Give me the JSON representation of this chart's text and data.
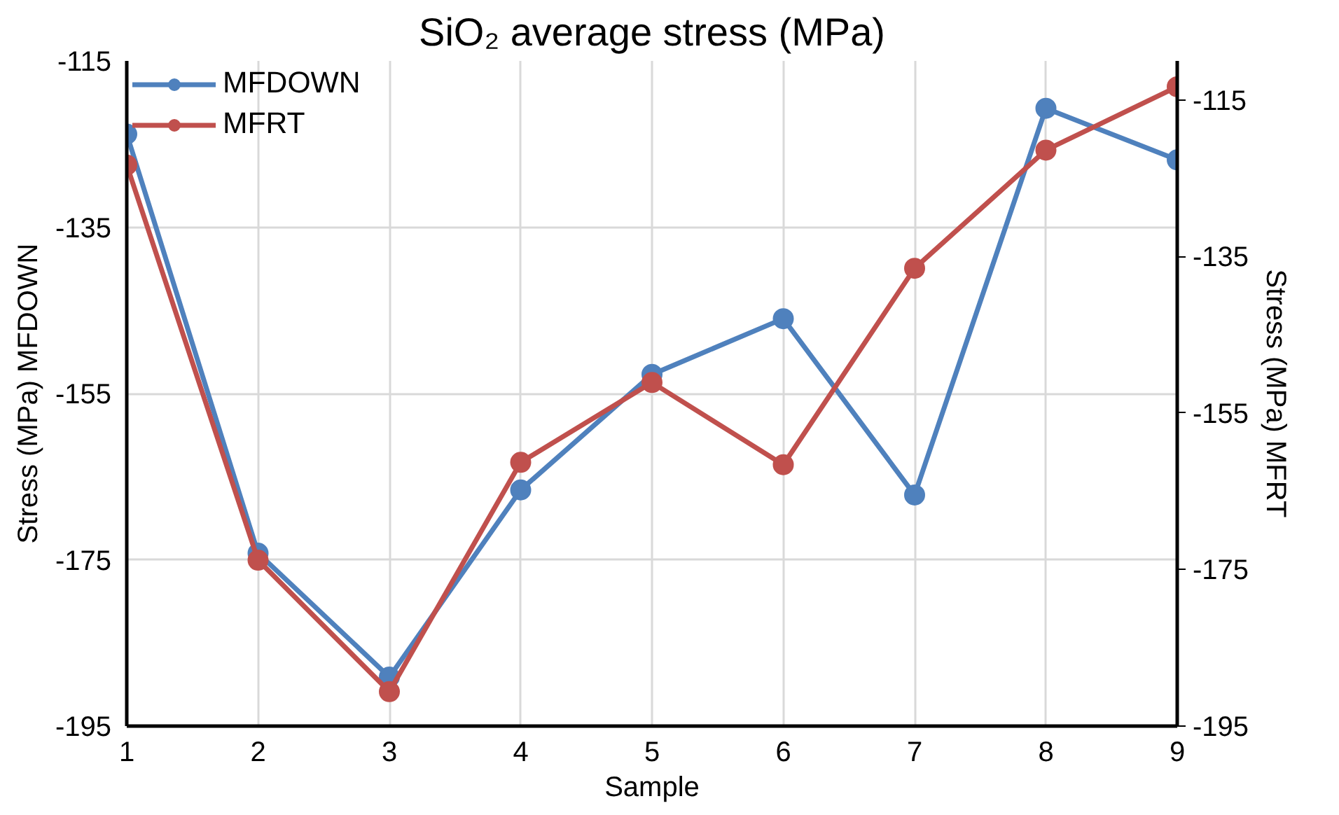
{
  "chart_data": {
    "type": "line",
    "title": "SiO₂ average stress (MPa)",
    "xlabel": "Sample",
    "ylabel": "Stress (MPa) MFDOWN",
    "y2label": "Stress (MPa) MFRT",
    "x": [
      1,
      2,
      3,
      4,
      5,
      6,
      7,
      8,
      9
    ],
    "xlim": [
      1,
      9
    ],
    "xticks": [
      1,
      2,
      3,
      4,
      5,
      6,
      7,
      8,
      9
    ],
    "ylim": [
      -195,
      -115
    ],
    "yticks": [
      -195,
      -175,
      -155,
      -135,
      -115
    ],
    "y2lim": [
      -195,
      -110
    ],
    "y2ticks": [
      -195,
      -175,
      -155,
      -135,
      -115
    ],
    "grid": true,
    "legend": "top left",
    "marker": "circle",
    "line_style": "solid",
    "series": [
      {
        "name": "MFDOWN",
        "color": "#4f81bd",
        "values": [
          -123.8,
          -174.2,
          -189.1,
          -166.6,
          -152.7,
          -146.0,
          -167.2,
          -120.7,
          -126.9
        ]
      },
      {
        "name": "MFRT",
        "color": "#c0504d",
        "axis": "y2",
        "values": [
          -123.3,
          -173.8,
          -190.6,
          -161.3,
          -151.1,
          -161.6,
          -136.5,
          -121.4,
          -113.3
        ]
      }
    ]
  }
}
